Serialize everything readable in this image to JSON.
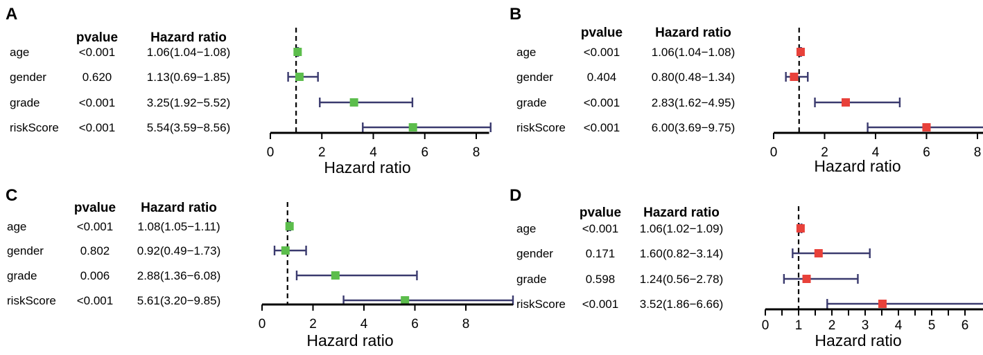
{
  "colors": {
    "green": "#5cbd4c",
    "red": "#e8413a",
    "ci": "#3a3a6e",
    "axis": "#000000"
  },
  "chart_data": [
    {
      "type": "forest",
      "panel": "A",
      "pvalue_header": "pvalue",
      "hr_header": "Hazard ratio",
      "xlabel": "Hazard ratio",
      "xlim": [
        0,
        8.5
      ],
      "ticks": [
        0,
        2,
        4,
        6,
        8
      ],
      "ref_line": 1,
      "marker_color": "green",
      "rows": [
        {
          "label": "age",
          "pvalue": "<0.001",
          "hr_text": "1.06(1.04−1.08)",
          "hr": 1.06,
          "lo": 1.04,
          "hi": 1.08
        },
        {
          "label": "gender",
          "pvalue": "0.620",
          "hr_text": "1.13(0.69−1.85)",
          "hr": 1.13,
          "lo": 0.69,
          "hi": 1.85
        },
        {
          "label": "grade",
          "pvalue": "<0.001",
          "hr_text": "3.25(1.92−5.52)",
          "hr": 3.25,
          "lo": 1.92,
          "hi": 5.52
        },
        {
          "label": "riskScore",
          "pvalue": "<0.001",
          "hr_text": "5.54(3.59−8.56)",
          "hr": 5.54,
          "lo": 3.59,
          "hi": 8.56
        }
      ]
    },
    {
      "type": "forest",
      "panel": "B",
      "pvalue_header": "pvalue",
      "hr_header": "Hazard ratio",
      "xlabel": "Hazard ratio",
      "xlim": [
        0,
        9.75
      ],
      "ticks": [
        0,
        2,
        4,
        6,
        8
      ],
      "ref_line": 1,
      "marker_color": "red",
      "rows": [
        {
          "label": "age",
          "pvalue": "<0.001",
          "hr_text": "1.06(1.04−1.08)",
          "hr": 1.06,
          "lo": 1.04,
          "hi": 1.08
        },
        {
          "label": "gender",
          "pvalue": "0.404",
          "hr_text": "0.80(0.48−1.34)",
          "hr": 0.8,
          "lo": 0.48,
          "hi": 1.34
        },
        {
          "label": "grade",
          "pvalue": "<0.001",
          "hr_text": "2.83(1.62−4.95)",
          "hr": 2.83,
          "lo": 1.62,
          "hi": 4.95
        },
        {
          "label": "riskScore",
          "pvalue": "<0.001",
          "hr_text": "6.00(3.69−9.75)",
          "hr": 6.0,
          "lo": 3.69,
          "hi": 9.75
        }
      ]
    },
    {
      "type": "forest",
      "panel": "C",
      "pvalue_header": "pvalue",
      "hr_header": "Hazard ratio",
      "xlabel": "Hazard ratio",
      "xlim": [
        0,
        9.85
      ],
      "ticks": [
        0,
        2,
        4,
        6,
        8
      ],
      "ref_line": 1,
      "marker_color": "green",
      "rows": [
        {
          "label": "age",
          "pvalue": "<0.001",
          "hr_text": "1.08(1.05−1.11)",
          "hr": 1.08,
          "lo": 1.05,
          "hi": 1.11
        },
        {
          "label": "gender",
          "pvalue": "0.802",
          "hr_text": "0.92(0.49−1.73)",
          "hr": 0.92,
          "lo": 0.49,
          "hi": 1.73
        },
        {
          "label": "grade",
          "pvalue": "0.006",
          "hr_text": "2.88(1.36−6.08)",
          "hr": 2.88,
          "lo": 1.36,
          "hi": 6.08
        },
        {
          "label": "riskScore",
          "pvalue": "<0.001",
          "hr_text": "5.61(3.20−9.85)",
          "hr": 5.61,
          "lo": 3.2,
          "hi": 9.85
        }
      ]
    },
    {
      "type": "forest",
      "panel": "D",
      "pvalue_header": "pvalue",
      "hr_header": "Hazard ratio",
      "xlabel": "Hazard ratio",
      "xlim": [
        0,
        6.66
      ],
      "ticks": [
        0,
        0.5,
        1,
        1.5,
        2,
        2.5,
        3,
        3.5,
        4,
        4.5,
        5,
        5.5,
        6
      ],
      "tick_labels": [
        "0",
        "",
        "1",
        "",
        "2",
        "",
        "3",
        "",
        "4",
        "",
        "5",
        "",
        "6"
      ],
      "ref_line": 1,
      "marker_color": "red",
      "rows": [
        {
          "label": "age",
          "pvalue": "<0.001",
          "hr_text": "1.06(1.02−1.09)",
          "hr": 1.06,
          "lo": 1.02,
          "hi": 1.09
        },
        {
          "label": "gender",
          "pvalue": "0.171",
          "hr_text": "1.60(0.82−3.14)",
          "hr": 1.6,
          "lo": 0.82,
          "hi": 3.14
        },
        {
          "label": "grade",
          "pvalue": "0.598",
          "hr_text": "1.24(0.56−2.78)",
          "hr": 1.24,
          "lo": 0.56,
          "hi": 2.78
        },
        {
          "label": "riskScore",
          "pvalue": "<0.001",
          "hr_text": "3.52(1.86−6.66)",
          "hr": 3.52,
          "lo": 1.86,
          "hi": 6.66
        }
      ]
    }
  ]
}
